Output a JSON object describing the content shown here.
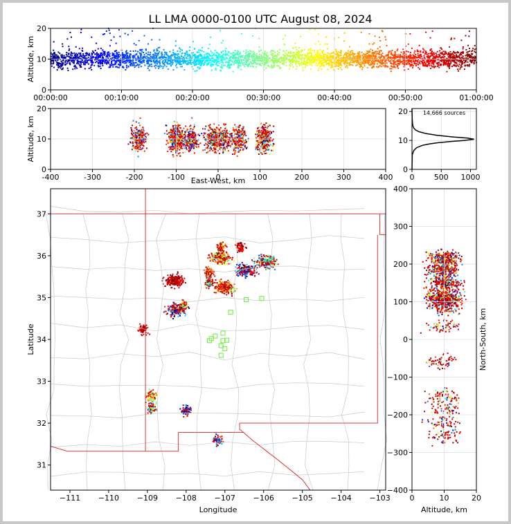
{
  "title": "LL LMA 0000-0100 UTC August 08, 2024",
  "chart_data": [
    {
      "panel": "time-height",
      "type": "scatter",
      "ylabel": "Altitude, km",
      "xlim": [
        "00:00:00",
        "01:00:00"
      ],
      "ylim": [
        0,
        20
      ],
      "xticks": [
        "00:00:00",
        "00:10:00",
        "00:20:00",
        "00:30:00",
        "00:40:00",
        "00:50:00",
        "01:00:00"
      ],
      "yticks": [
        0,
        10,
        20
      ],
      "color_encoding": "time (blue early, dark red late)",
      "grid": true,
      "altitude_band_km": [
        6,
        15
      ],
      "altitude_center_km": 10
    },
    {
      "panel": "east-west-height",
      "type": "scatter",
      "xlabel": "East-West, km",
      "ylabel": "Altitude, km",
      "xlim": [
        -400,
        400
      ],
      "ylim": [
        0,
        20
      ],
      "xticks": [
        -400,
        -300,
        -200,
        -100,
        0,
        100,
        200,
        300,
        400
      ],
      "yticks": [
        0,
        10,
        20
      ],
      "clusters_ew_km": [
        -190,
        -100,
        -65,
        -15,
        10,
        50,
        110
      ],
      "grid": true
    },
    {
      "panel": "altitude-histogram",
      "type": "line",
      "annotation": "14,666 sources",
      "xlim": [
        0,
        1100
      ],
      "ylim": [
        0,
        21
      ],
      "xticks": [
        0,
        500,
        1000
      ],
      "yticks": [
        0,
        10,
        20
      ],
      "x": [
        0,
        5,
        30,
        80,
        180,
        300,
        450,
        650,
        900,
        1060,
        950,
        700,
        420,
        230,
        120,
        60,
        30,
        15,
        8,
        3,
        0
      ],
      "y": [
        0,
        5,
        6.5,
        7.5,
        8.3,
        8.8,
        9.2,
        9.6,
        10,
        10.4,
        10.8,
        11.2,
        11.8,
        12.4,
        13,
        13.6,
        14.3,
        15,
        16,
        17.5,
        21
      ]
    },
    {
      "panel": "plan-view",
      "type": "scatter",
      "xlabel": "Longitude",
      "ylabel": "Latitude",
      "xlim": [
        -111.5,
        -102.85
      ],
      "ylim": [
        30.4,
        37.6
      ],
      "xticks": [
        -111,
        -110,
        -109,
        -108,
        -107,
        -106,
        -105,
        -104,
        -103
      ],
      "yticks": [
        31,
        32,
        33,
        34,
        35,
        36,
        37
      ],
      "clusters_lonlat": [
        [
          -106.45,
          35.65
        ],
        [
          -105.95,
          35.85
        ],
        [
          -107.1,
          35.95
        ],
        [
          -107.0,
          35.25
        ],
        [
          -108.3,
          35.4
        ],
        [
          -108.25,
          34.7
        ],
        [
          -107.4,
          35.35
        ],
        [
          -108.1,
          34.8
        ],
        [
          -107.4,
          35.6
        ],
        [
          -109.1,
          34.25
        ],
        [
          -108.0,
          32.3
        ],
        [
          -108.9,
          32.35
        ],
        [
          -108.9,
          32.65
        ],
        [
          -107.1,
          36.2
        ],
        [
          -106.6,
          36.2
        ],
        [
          -107.2,
          31.6
        ]
      ],
      "station_markers": [
        [
          -106.45,
          34.95
        ],
        [
          -106.05,
          34.98
        ],
        [
          -106.85,
          34.65
        ],
        [
          -107.05,
          34.15
        ],
        [
          -107.25,
          34.08
        ],
        [
          -107.4,
          33.97
        ],
        [
          -107.05,
          33.97
        ],
        [
          -106.95,
          33.98
        ],
        [
          -107.1,
          33.85
        ],
        [
          -107.0,
          33.78
        ],
        [
          -107.1,
          33.62
        ],
        [
          -106.8,
          35.18
        ],
        [
          -107.35,
          34.02
        ]
      ]
    },
    {
      "panel": "north-south-height",
      "type": "scatter",
      "xlabel": "Altitude, km",
      "ylabel": "North-South, km",
      "xlim": [
        0,
        20
      ],
      "ylim": [
        -400,
        400
      ],
      "xticks": [
        0,
        10,
        20
      ],
      "yticks": [
        -400,
        -300,
        -200,
        -100,
        0,
        100,
        200,
        300,
        400
      ],
      "clusters_ns_km": [
        215,
        185,
        150,
        115,
        100,
        80,
        35,
        -60,
        -150,
        -185,
        -220,
        -255
      ]
    }
  ]
}
